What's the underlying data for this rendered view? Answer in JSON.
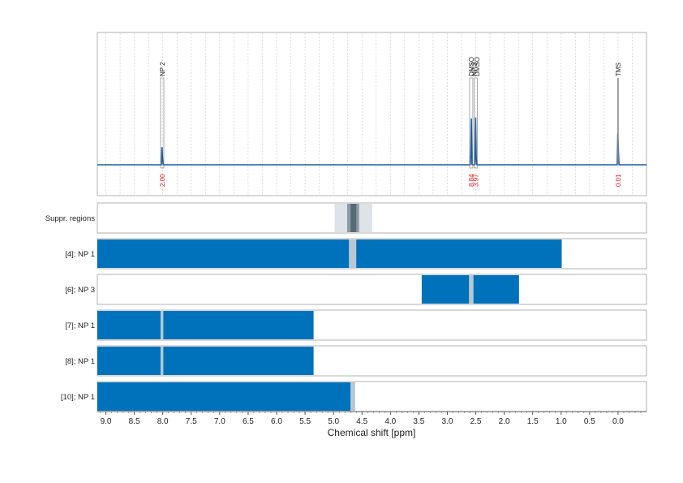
{
  "chart_data": {
    "type": "nmr-spectrum-with-bar-rows",
    "xlabel": "Chemical shift [ppm]",
    "xlim": [
      9.15,
      -0.5
    ],
    "x_reversed": true,
    "x_ticks": [
      "9.0",
      "8.5",
      "8.0",
      "7.5",
      "7.0",
      "6.5",
      "6.0",
      "5.5",
      "5.0",
      "4.5",
      "4.0",
      "3.5",
      "3.0",
      "2.5",
      "2.0",
      "1.5",
      "1.0",
      "0.5",
      "0.0"
    ],
    "grid": true,
    "spectrum": {
      "line_color": "#1f5fa0",
      "peaks": [
        {
          "label": "NP 2",
          "shift": 8.01,
          "integral": "2.00",
          "height": 0.28
        },
        {
          "label": "NP 3",
          "shift": 2.58,
          "integral": "8.84",
          "height": 0.65
        },
        {
          "label": "DMSO",
          "shift": 2.5,
          "integral": "3.97",
          "height": 0.62
        },
        {
          "label": "TMS",
          "shift": 0.0,
          "integral": "0.01",
          "height": 0.55
        }
      ],
      "top_labels": [
        {
          "text": "NP 2",
          "shift": 8.01
        },
        {
          "text": "DMSO",
          "shift": 2.58
        },
        {
          "text": "NP 3",
          "shift": 2.53
        },
        {
          "text": "DMSO",
          "shift": 2.48
        },
        {
          "text": "TMS",
          "shift": 0.0
        }
      ]
    },
    "suppression": {
      "label": "Suppr. regions",
      "regions": [
        {
          "from": 4.98,
          "to": 4.32,
          "level": "light"
        },
        {
          "from": 4.76,
          "to": 4.55,
          "level": "mid"
        },
        {
          "from": 4.7,
          "to": 4.6,
          "level": "dark"
        }
      ]
    },
    "rows": [
      {
        "label": "[4]; NP 1",
        "segments": [
          {
            "from": 9.15,
            "to": 0.99
          }
        ],
        "gaps": [
          {
            "from": 4.73,
            "to": 4.6
          }
        ]
      },
      {
        "label": "[6]; NP 3",
        "segments": [
          {
            "from": 3.45,
            "to": 1.74
          }
        ],
        "gaps": [
          {
            "from": 2.62,
            "to": 2.54
          }
        ]
      },
      {
        "label": "[7]; NP 1",
        "segments": [
          {
            "from": 9.15,
            "to": 5.35
          }
        ],
        "gaps": [
          {
            "from": 8.04,
            "to": 7.99
          }
        ]
      },
      {
        "label": "[8]; NP 1",
        "segments": [
          {
            "from": 9.15,
            "to": 5.35
          }
        ],
        "gaps": [
          {
            "from": 8.04,
            "to": 7.99
          }
        ]
      },
      {
        "label": "[10]; NP 1",
        "segments": [
          {
            "from": 9.15,
            "to": 4.7
          }
        ],
        "gaps": [
          {
            "from": 4.7,
            "to": 4.62
          }
        ]
      }
    ],
    "colors": {
      "bar": "#0072bb",
      "gap": "#b5c8d3",
      "suppr_light": "#dde3e9",
      "suppr_mid": "#8a9ba6",
      "suppr_dark": "#596a73",
      "frame": "#b0b0b0",
      "integral": "#e8131b",
      "grid": "#c8c8c8"
    }
  }
}
